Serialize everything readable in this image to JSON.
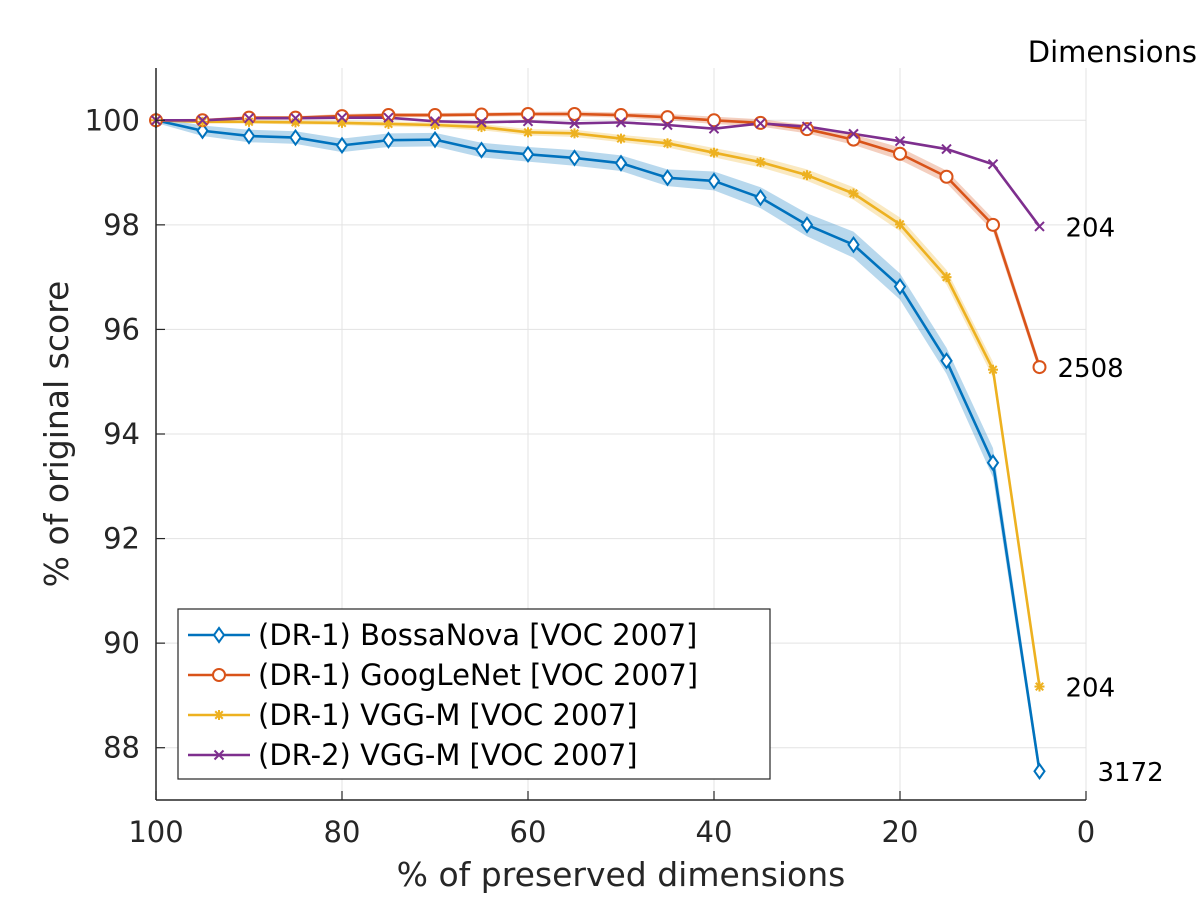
{
  "chart_data": {
    "type": "line",
    "title": "",
    "xlabel": "% of preserved dimensions",
    "ylabel": "% of original score",
    "xlim": [
      100,
      0
    ],
    "ylim": [
      87,
      101
    ],
    "x_reversed": true,
    "grid": true,
    "xticks": [
      100,
      80,
      60,
      40,
      20,
      0
    ],
    "yticks": [
      88,
      90,
      92,
      94,
      96,
      98,
      100
    ],
    "x": [
      100,
      95,
      90,
      85,
      80,
      75,
      70,
      65,
      60,
      55,
      50,
      45,
      40,
      35,
      30,
      25,
      20,
      15,
      10,
      5
    ],
    "legend_position": "bottom-left",
    "dimensions_title": "Dimensions",
    "series": [
      {
        "name": "(DR-1) BossaNova [VOC 2007]",
        "color": "#0072BD",
        "marker": "diamond",
        "values": [
          100,
          99.8,
          99.7,
          99.67,
          99.52,
          99.62,
          99.63,
          99.43,
          99.35,
          99.28,
          99.18,
          98.9,
          98.84,
          98.52,
          98.0,
          97.62,
          96.82,
          95.4,
          93.45,
          87.55
        ],
        "band": [
          0.05,
          0.1,
          0.12,
          0.12,
          0.13,
          0.13,
          0.13,
          0.14,
          0.14,
          0.15,
          0.15,
          0.16,
          0.18,
          0.2,
          0.22,
          0.25,
          0.25,
          0.25,
          0.28,
          0.15
        ],
        "end_label": "3172"
      },
      {
        "name": "(DR-1) GoogLeNet [VOC 2007]",
        "color": "#D95319",
        "marker": "circle",
        "values": [
          100,
          100.0,
          100.05,
          100.05,
          100.08,
          100.1,
          100.1,
          100.11,
          100.12,
          100.12,
          100.1,
          100.06,
          100.0,
          99.95,
          99.83,
          99.63,
          99.36,
          98.92,
          98.0,
          95.28
        ],
        "band": [
          0.02,
          0.03,
          0.03,
          0.03,
          0.04,
          0.04,
          0.04,
          0.04,
          0.04,
          0.05,
          0.05,
          0.06,
          0.07,
          0.07,
          0.08,
          0.1,
          0.12,
          0.12,
          0.12,
          0.1
        ],
        "end_label": "2508"
      },
      {
        "name": "(DR-1) VGG-M [VOC 2007]",
        "color": "#EDB120",
        "marker": "asterisk",
        "values": [
          100,
          99.97,
          99.97,
          99.96,
          99.95,
          99.93,
          99.91,
          99.87,
          99.77,
          99.75,
          99.65,
          99.56,
          99.38,
          99.2,
          98.95,
          98.6,
          98.01,
          97.0,
          95.23,
          89.17
        ],
        "band": [
          0.02,
          0.03,
          0.03,
          0.04,
          0.04,
          0.05,
          0.05,
          0.06,
          0.06,
          0.07,
          0.07,
          0.08,
          0.09,
          0.1,
          0.11,
          0.12,
          0.13,
          0.14,
          0.15,
          0.1
        ],
        "end_label": "204"
      },
      {
        "name": "(DR-2) VGG-M [VOC 2007]",
        "color": "#7E2F8E",
        "marker": "x",
        "values": [
          100,
          100.0,
          100.04,
          100.04,
          100.05,
          100.05,
          99.98,
          99.96,
          99.98,
          99.94,
          99.96,
          99.91,
          99.84,
          99.94,
          99.88,
          99.74,
          99.6,
          99.45,
          99.16,
          97.97
        ],
        "band": null,
        "end_label": "204"
      }
    ]
  }
}
